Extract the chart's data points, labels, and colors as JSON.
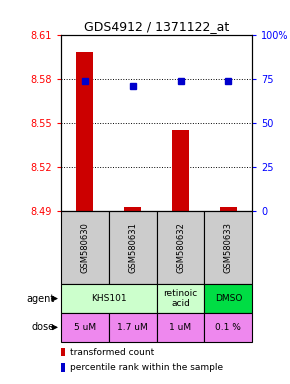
{
  "title": "GDS4912 / 1371122_at",
  "samples": [
    "GSM580630",
    "GSM580631",
    "GSM580632",
    "GSM580633"
  ],
  "bar_values": [
    8.598,
    8.493,
    8.545,
    8.493
  ],
  "bar_bottom": 8.49,
  "dot_values": [
    73.5,
    71.0,
    73.5,
    73.5
  ],
  "ylim_left": [
    8.49,
    8.61
  ],
  "ylim_right": [
    0,
    100
  ],
  "yticks_left": [
    8.49,
    8.52,
    8.55,
    8.58,
    8.61
  ],
  "yticks_right": [
    0,
    25,
    50,
    75,
    100
  ],
  "ytick_labels_left": [
    "8.49",
    "8.52",
    "8.55",
    "8.58",
    "8.61"
  ],
  "ytick_labels_right": [
    "0",
    "25",
    "50",
    "75",
    "100%"
  ],
  "hlines": [
    8.52,
    8.55,
    8.58
  ],
  "bar_color": "#cc0000",
  "dot_color": "#0000cc",
  "agent_spans": [
    [
      0,
      2,
      "KHS101",
      "#ccffcc"
    ],
    [
      2,
      3,
      "retinoic\nacid",
      "#ccffcc"
    ],
    [
      3,
      4,
      "DMSO",
      "#00dd44"
    ]
  ],
  "dose_labels": [
    "5 uM",
    "1.7 uM",
    "1 uM",
    "0.1 %"
  ],
  "dose_color": "#ee88ee",
  "sample_bg": "#cccccc",
  "legend_bar_color": "#cc0000",
  "legend_dot_color": "#0000cc",
  "legend_bar_text": "transformed count",
  "legend_dot_text": "percentile rank within the sample"
}
